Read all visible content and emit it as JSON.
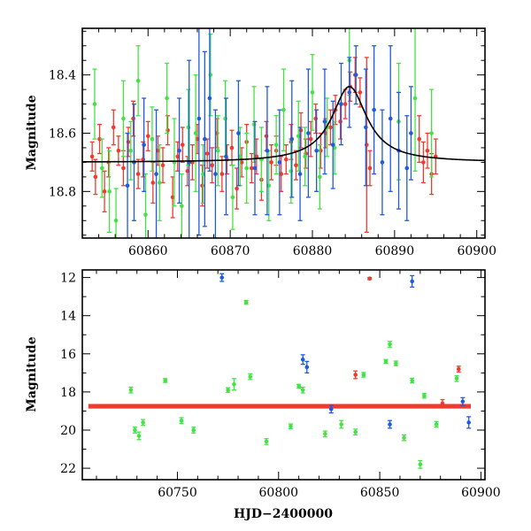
{
  "chart_data": [
    {
      "type": "scatter",
      "title": "",
      "xlabel": "",
      "ylabel": "Magnitude",
      "xlim": [
        60852,
        60901
      ],
      "ylim": [
        18.96,
        18.24
      ],
      "y_inverted": true,
      "grid": false,
      "xticks": [
        60860,
        60870,
        60880,
        60890,
        60900
      ],
      "yticks": [
        18.4,
        18.6,
        18.8
      ],
      "colors": {
        "green": "#44e344",
        "red": "#f03a2e",
        "blue": "#1f5ae0",
        "model": "#000000"
      },
      "series": [
        {
          "color_key": "red",
          "x": [
            60853.2,
            60853.6,
            60854.1,
            60854.7,
            60855.2,
            60855.8,
            60856.4,
            60857.0,
            60857.6,
            60858.2,
            60858.8,
            60859.4,
            60860.0,
            60860.6,
            60861.2,
            60861.8,
            60862.4,
            60863.0,
            60863.6,
            60864.2,
            60864.8,
            60865.4,
            60866.0,
            60866.6,
            60867.2,
            60867.8,
            60868.4,
            60869.0,
            60869.6,
            60870.2,
            60870.8,
            60871.4,
            60872.0,
            60872.6,
            60873.2,
            60873.8,
            60874.4,
            60875.0,
            60875.6,
            60876.2,
            60876.8,
            60877.4,
            60878.0,
            60878.6,
            60879.2,
            60879.8,
            60880.4,
            60881.0,
            60881.6,
            60882.2,
            60882.8,
            60883.4,
            60884.0,
            60884.6,
            60885.2,
            60885.8,
            60886.6,
            60887.0,
            60893.0,
            60893.5,
            60894.0,
            60894.5,
            60895.0
          ],
          "y": [
            18.68,
            18.75,
            18.62,
            18.8,
            18.7,
            18.58,
            18.66,
            18.72,
            18.63,
            18.55,
            18.74,
            18.69,
            18.61,
            18.77,
            18.66,
            18.71,
            18.59,
            18.82,
            18.68,
            18.64,
            18.73,
            18.7,
            18.62,
            18.78,
            18.67,
            18.71,
            18.6,
            18.74,
            18.69,
            18.65,
            18.79,
            18.7,
            18.63,
            18.72,
            18.68,
            18.76,
            18.61,
            18.7,
            18.66,
            18.74,
            18.69,
            18.63,
            18.71,
            18.59,
            18.67,
            18.62,
            18.55,
            18.66,
            18.6,
            18.58,
            18.52,
            18.56,
            18.5,
            18.44,
            18.4,
            18.46,
            18.64,
            18.72,
            18.62,
            18.7,
            18.66,
            18.74,
            18.68
          ],
          "err": [
            0.05,
            0.06,
            0.05,
            0.07,
            0.05,
            0.06,
            0.05,
            0.06,
            0.05,
            0.06,
            0.05,
            0.06,
            0.05,
            0.07,
            0.05,
            0.06,
            0.05,
            0.07,
            0.05,
            0.06,
            0.05,
            0.06,
            0.05,
            0.07,
            0.05,
            0.06,
            0.05,
            0.06,
            0.05,
            0.06,
            0.07,
            0.05,
            0.06,
            0.05,
            0.06,
            0.07,
            0.05,
            0.06,
            0.05,
            0.06,
            0.05,
            0.06,
            0.05,
            0.06,
            0.05,
            0.06,
            0.05,
            0.06,
            0.05,
            0.06,
            0.05,
            0.06,
            0.05,
            0.05,
            0.06,
            0.05,
            0.3,
            0.06,
            0.08,
            0.07,
            0.06,
            0.07,
            0.06
          ]
        },
        {
          "color_key": "green",
          "x": [
            60853.5,
            60854.4,
            60855.3,
            60856.1,
            60857.0,
            60857.9,
            60858.8,
            60859.7,
            60860.5,
            60861.4,
            60862.3,
            60863.2,
            60864.1,
            60864.9,
            60865.8,
            60866.7,
            60867.6,
            60868.5,
            60869.4,
            60870.3,
            60871.2,
            60872.0,
            60872.9,
            60873.8,
            60874.7,
            60875.6,
            60876.5,
            60877.4,
            60878.3,
            60879.1,
            60880.0,
            60880.9,
            60881.8,
            60882.7,
            60884.5,
            60890.5,
            60892.5,
            60894.5
          ],
          "y": [
            18.5,
            18.72,
            18.8,
            18.9,
            18.55,
            18.66,
            18.42,
            18.88,
            18.62,
            18.77,
            18.48,
            18.7,
            18.85,
            18.58,
            18.6,
            18.74,
            18.4,
            18.66,
            18.55,
            18.82,
            18.68,
            18.72,
            18.57,
            18.69,
            18.78,
            18.64,
            18.52,
            18.73,
            18.61,
            18.68,
            18.46,
            18.75,
            18.58,
            18.65,
            18.35,
            18.56,
            18.48,
            18.6
          ],
          "err": [
            0.12,
            0.1,
            0.14,
            0.11,
            0.13,
            0.1,
            0.12,
            0.14,
            0.11,
            0.13,
            0.12,
            0.15,
            0.11,
            0.13,
            0.2,
            0.1,
            0.14,
            0.12,
            0.13,
            0.11,
            0.1,
            0.12,
            0.13,
            0.11,
            0.12,
            0.1,
            0.14,
            0.11,
            0.12,
            0.1,
            0.13,
            0.11,
            0.1,
            0.09,
            0.12,
            0.2,
            0.25,
            0.15
          ]
        },
        {
          "color_key": "blue",
          "x": [
            60857.5,
            60858.3,
            60859.5,
            60861.0,
            60863.8,
            60865.0,
            60866.2,
            60866.9,
            60867.5,
            60868.2,
            60869.5,
            60871.0,
            60873.0,
            60874.5,
            60876.0,
            60877.5,
            60878.5,
            60879.5,
            60880.5,
            60881.5,
            60882.5,
            60883.5,
            60884.5,
            60885.3,
            60886.5,
            60887.5,
            60888.5,
            60889.5,
            60890.5,
            60891.5,
            60892.0
          ],
          "y": [
            18.78,
            18.7,
            18.64,
            18.74,
            18.66,
            18.7,
            18.55,
            18.62,
            18.48,
            18.74,
            18.68,
            18.6,
            18.72,
            18.66,
            18.7,
            18.62,
            18.74,
            18.6,
            18.66,
            18.56,
            18.64,
            18.5,
            18.46,
            18.4,
            18.58,
            18.52,
            18.7,
            18.55,
            18.66,
            18.72,
            18.6
          ],
          "err": [
            0.18,
            0.2,
            0.16,
            0.22,
            0.18,
            0.35,
            0.4,
            0.3,
            0.25,
            0.22,
            0.2,
            0.18,
            0.16,
            0.22,
            0.18,
            0.2,
            0.16,
            0.22,
            0.14,
            0.18,
            0.15,
            0.14,
            0.12,
            0.1,
            0.2,
            0.22,
            0.18,
            0.25,
            0.2,
            0.18,
            0.16
          ]
        }
      ],
      "model": {
        "color_key": "model",
        "t0": 60884.5,
        "baseline": 18.7,
        "peak_depth": 0.26,
        "tE": 2.6,
        "x_range": [
          60852,
          60901
        ]
      }
    },
    {
      "type": "scatter",
      "title": "",
      "xlabel": "HJD−2400000",
      "ylabel": "Magnitude",
      "xlim": [
        60703,
        60902
      ],
      "ylim": [
        22.6,
        11.6
      ],
      "y_inverted": true,
      "grid": false,
      "xticks": [
        60750,
        60800,
        60850,
        60900
      ],
      "yticks": [
        12,
        14,
        16,
        18,
        20,
        22
      ],
      "colors": {
        "green": "#44e344",
        "red": "#f03a2e",
        "blue": "#1f5ae0"
      },
      "band": {
        "x_start": 60706,
        "x_end": 60895,
        "center": 18.75,
        "half_width": 0.12
      },
      "series": [
        {
          "color_key": "green",
          "x": [
            60727,
            60729,
            60731,
            60733,
            60744,
            60752,
            60758,
            60775,
            60778,
            60784,
            60786,
            60794,
            60806,
            60810,
            60812,
            60823,
            60831,
            60838,
            60842,
            60853,
            60855,
            60858,
            60862,
            60866,
            60870,
            60872,
            60878,
            60888
          ],
          "y": [
            17.9,
            20.0,
            20.3,
            19.6,
            17.4,
            19.5,
            20.0,
            17.9,
            17.6,
            13.3,
            17.2,
            20.6,
            19.8,
            17.7,
            17.9,
            20.2,
            19.7,
            20.1,
            17.1,
            16.4,
            15.5,
            16.5,
            20.4,
            17.4,
            21.8,
            18.2,
            19.7,
            17.3
          ],
          "err": [
            0.15,
            0.15,
            0.2,
            0.15,
            0.1,
            0.15,
            0.15,
            0.12,
            0.3,
            0.1,
            0.15,
            0.15,
            0.12,
            0.1,
            0.15,
            0.15,
            0.2,
            0.15,
            0.12,
            0.1,
            0.15,
            0.12,
            0.15,
            0.12,
            0.2,
            0.12,
            0.15,
            0.15
          ]
        },
        {
          "color_key": "blue",
          "x": [
            60772,
            60812,
            60814,
            60826,
            60855,
            60866,
            60891,
            60894
          ],
          "y": [
            12.0,
            16.3,
            16.7,
            18.9,
            19.7,
            12.2,
            18.5,
            19.6
          ],
          "err": [
            0.2,
            0.25,
            0.3,
            0.2,
            0.2,
            0.3,
            0.2,
            0.3
          ]
        },
        {
          "color_key": "red",
          "x": [
            60838,
            60845,
            60881,
            60889
          ],
          "y": [
            17.1,
            12.05,
            18.6,
            16.8
          ],
          "err": [
            0.2,
            0.05,
            0.2,
            0.15
          ]
        }
      ]
    }
  ]
}
